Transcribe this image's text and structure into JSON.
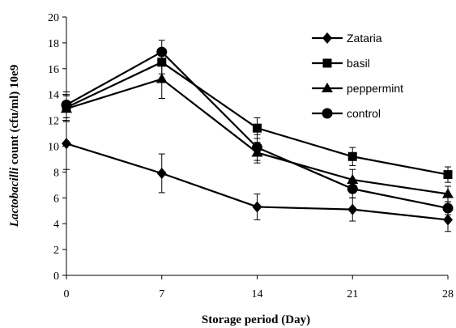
{
  "chart_data": {
    "type": "line",
    "xlabel": "Storage period (Day)",
    "ylabel_italic": "Lactobacilli",
    "ylabel_rest": " count (cfu/ml) 10e9",
    "x": [
      0,
      7,
      14,
      21,
      28
    ],
    "xlim": [
      0,
      28
    ],
    "ylim": [
      0,
      20
    ],
    "yticks": [
      0,
      2,
      4,
      6,
      8,
      10,
      12,
      14,
      16,
      18,
      20
    ],
    "grid": false,
    "legend_position": "top-right",
    "series": [
      {
        "name": "Zataria",
        "marker": "diamond",
        "values": [
          10.2,
          7.9,
          5.3,
          5.1,
          4.3
        ],
        "errors": [
          2.0,
          1.5,
          1.0,
          0.9,
          0.9
        ]
      },
      {
        "name": "basil",
        "marker": "square",
        "values": [
          13.0,
          16.5,
          11.4,
          9.2,
          7.8
        ],
        "errors": [
          1.0,
          0.9,
          0.8,
          0.7,
          0.6
        ]
      },
      {
        "name": "peppermint",
        "marker": "triangle",
        "values": [
          12.9,
          15.2,
          9.5,
          7.4,
          6.3
        ],
        "errors": [
          1.0,
          1.5,
          0.8,
          0.8,
          0.6
        ]
      },
      {
        "name": "control",
        "marker": "circle",
        "values": [
          13.2,
          17.3,
          9.9,
          6.7,
          5.2
        ],
        "errors": [
          1.0,
          0.9,
          1.0,
          0.7,
          0.5
        ]
      }
    ]
  }
}
